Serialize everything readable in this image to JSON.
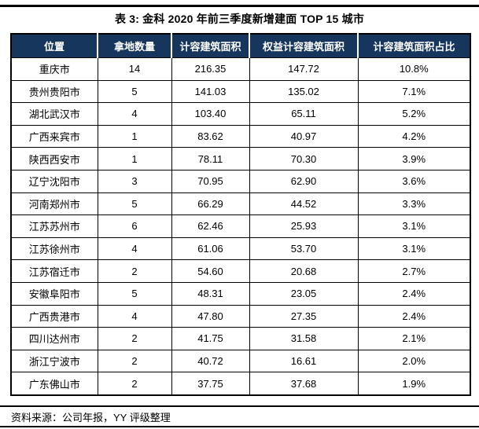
{
  "title": "表 3: 金科 2020 年前三季度新增建面 TOP 15 城市",
  "table": {
    "headers": [
      "位置",
      "拿地数量",
      "计容建筑面积",
      "权益计容建筑面积",
      "计容建筑面积占比"
    ],
    "rows": [
      [
        "重庆市",
        "14",
        "216.35",
        "147.72",
        "10.8%"
      ],
      [
        "贵州贵阳市",
        "5",
        "141.03",
        "135.02",
        "7.1%"
      ],
      [
        "湖北武汉市",
        "4",
        "103.40",
        "65.11",
        "5.2%"
      ],
      [
        "广西来宾市",
        "1",
        "83.62",
        "40.97",
        "4.2%"
      ],
      [
        "陕西西安市",
        "1",
        "78.11",
        "70.30",
        "3.9%"
      ],
      [
        "辽宁沈阳市",
        "3",
        "70.95",
        "62.90",
        "3.6%"
      ],
      [
        "河南郑州市",
        "5",
        "66.29",
        "44.52",
        "3.3%"
      ],
      [
        "江苏苏州市",
        "6",
        "62.46",
        "25.93",
        "3.1%"
      ],
      [
        "江苏徐州市",
        "4",
        "61.06",
        "53.70",
        "3.1%"
      ],
      [
        "江苏宿迁市",
        "2",
        "54.60",
        "20.68",
        "2.7%"
      ],
      [
        "安徽阜阳市",
        "5",
        "48.31",
        "23.05",
        "2.4%"
      ],
      [
        "广西贵港市",
        "4",
        "47.80",
        "27.35",
        "2.4%"
      ],
      [
        "四川达州市",
        "2",
        "41.75",
        "31.58",
        "2.1%"
      ],
      [
        "浙江宁波市",
        "2",
        "40.72",
        "16.61",
        "2.0%"
      ],
      [
        "广东佛山市",
        "2",
        "37.75",
        "37.68",
        "1.9%"
      ]
    ]
  },
  "footer": {
    "source": "资料来源：公司年报，YY 评级整理"
  },
  "colors": {
    "header_bg": "#17365D",
    "header_text": "#FFFFFF",
    "cell_border": "#000000",
    "rule": "#000000"
  }
}
